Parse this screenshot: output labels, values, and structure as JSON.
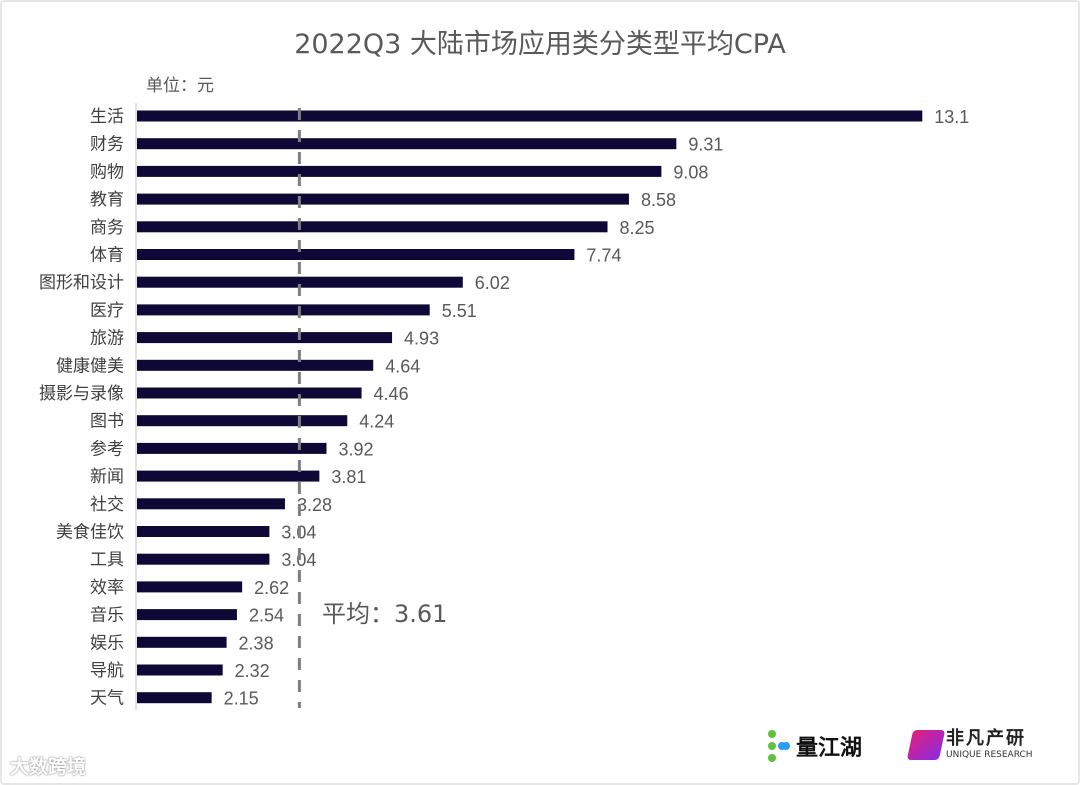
{
  "chart_data": {
    "type": "bar",
    "orientation": "horizontal",
    "title": "2022Q3 大陆市场应用类分类型平均CPA",
    "unit_label": "单位：元",
    "categories": [
      "生活",
      "财务",
      "购物",
      "教育",
      "商务",
      "体育",
      "图形和设计",
      "医疗",
      "旅游",
      "健康健美",
      "摄影与录像",
      "图书",
      "参考",
      "新闻",
      "社交",
      "美食佳饮",
      "工具",
      "效率",
      "音乐",
      "娱乐",
      "导航",
      "天气"
    ],
    "values": [
      13.1,
      9.31,
      9.08,
      8.58,
      8.25,
      7.74,
      6.02,
      5.51,
      4.93,
      4.64,
      4.46,
      4.24,
      3.92,
      3.81,
      3.28,
      3.04,
      3.04,
      2.62,
      2.54,
      2.38,
      2.32,
      2.15
    ],
    "value_labels": [
      "13.1",
      "9.31",
      "9.08",
      "8.58",
      "8.25",
      "7.74",
      "6.02",
      "5.51",
      "4.93",
      "4.64",
      "4.46",
      "4.24",
      "3.92",
      "3.81",
      "3.28",
      "3.04",
      "3.04",
      "2.62",
      "2.54",
      "2.38",
      "2.32",
      "2.15"
    ],
    "xlim": [
      1,
      14
    ],
    "average": {
      "value": 3.61,
      "label": "平均：3.61",
      "style": "dashed"
    },
    "bar_color": "#0d0835",
    "grid": false
  },
  "logos": {
    "brand1": "量江湖",
    "brand2_cn": "非凡产研",
    "brand2_en": "UNIQUE RESEARCH",
    "watermark": "大数跨境"
  }
}
